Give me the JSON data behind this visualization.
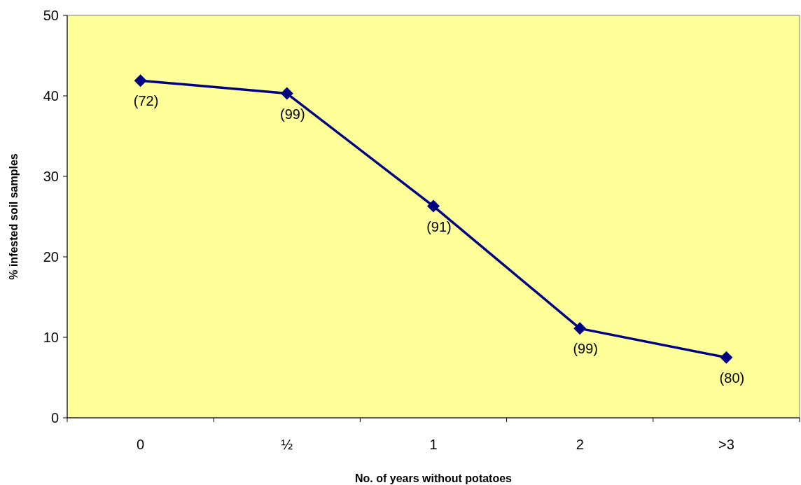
{
  "chart_data": {
    "type": "line",
    "xlabel": "No. of years without potatoes",
    "ylabel": "% infested soil samples",
    "categories": [
      "0",
      "½",
      "1",
      "2",
      ">3"
    ],
    "series": [
      {
        "color": "#000080",
        "values": [
          41.9,
          40.3,
          26.3,
          11.1,
          7.5
        ]
      }
    ],
    "ylim": [
      0,
      50
    ],
    "yticks": [
      0,
      10,
      20,
      30,
      40,
      50
    ],
    "grid": false,
    "marker": "diamond",
    "line_style": "solid",
    "annotations": [
      {
        "text": "(72)",
        "x": "0",
        "y": 41.9
      },
      {
        "text": "(99)",
        "x": "½",
        "y": 40.3
      },
      {
        "text": "(91)",
        "x": "1",
        "y": 26.3
      },
      {
        "text": "(99)",
        "x": "2",
        "y": 11.1
      },
      {
        "text": "(80)",
        "x": ">3",
        "y": 7.5
      }
    ]
  }
}
